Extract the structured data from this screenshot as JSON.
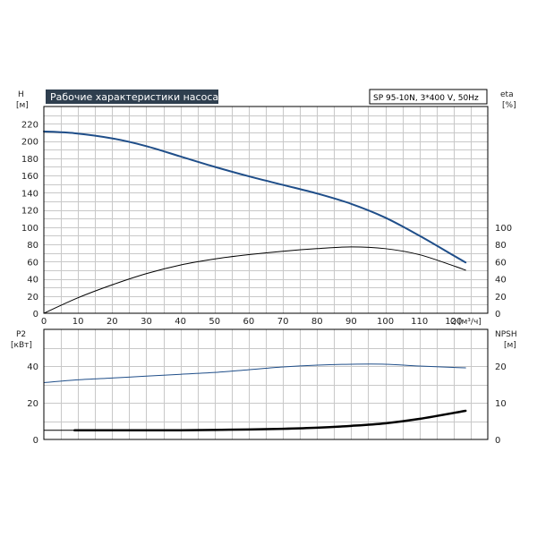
{
  "header": {
    "title": "Рабочие характеристики насоса",
    "model": "SP 95-10N, 3*400 V, 50Hz"
  },
  "colors": {
    "title_bg": "#2f3f4f",
    "blue": "#1f4e89",
    "black": "#000000",
    "grid": "#c8c8c8"
  },
  "chart_data": [
    {
      "type": "line",
      "name": "top",
      "x_label": "Q",
      "x_unit": "[м³/ч]",
      "xlim": [
        0,
        130
      ],
      "x_ticks": [
        0,
        10,
        20,
        30,
        40,
        50,
        60,
        70,
        80,
        90,
        100,
        110,
        120
      ],
      "left_axis": {
        "label": "H",
        "unit": "[м]",
        "ylim": [
          0,
          240
        ],
        "ticks": [
          0,
          20,
          40,
          60,
          80,
          100,
          120,
          140,
          160,
          180,
          200,
          220
        ]
      },
      "right_axis": {
        "label": "eta",
        "unit": "[%]",
        "ylim": [
          0,
          240
        ],
        "ticks": [
          0,
          20,
          40,
          60,
          80,
          100
        ]
      },
      "series": [
        {
          "axis": "left",
          "color": "blue",
          "width": 2,
          "x": [
            0,
            9,
            20,
            30,
            40,
            50,
            60,
            70,
            80,
            90,
            100,
            110,
            120,
            123.5
          ],
          "y": [
            211,
            209,
            203,
            194,
            182,
            170,
            159,
            149,
            139,
            127,
            111,
            90,
            67,
            59
          ]
        },
        {
          "axis": "right",
          "color": "black",
          "width": 1,
          "x": [
            0,
            10,
            20,
            30,
            40,
            50,
            60,
            70,
            80,
            90,
            100,
            110,
            120,
            123.5
          ],
          "y": [
            0,
            18,
            33,
            46,
            56,
            63,
            68,
            72,
            75,
            77,
            75,
            68,
            55,
            50
          ]
        }
      ]
    },
    {
      "type": "line",
      "name": "bottom",
      "xlim": [
        0,
        130
      ],
      "x_ticks": [
        0,
        10,
        20,
        30,
        40,
        50,
        60,
        70,
        80,
        90,
        100,
        110,
        120
      ],
      "left_axis": {
        "label": "P2",
        "unit": "[кВт]",
        "ylim": [
          0,
          60
        ],
        "ticks": [
          0,
          20,
          40
        ]
      },
      "right_axis": {
        "label": "NPSH",
        "unit": "[м]",
        "ylim": [
          0,
          30
        ],
        "ticks": [
          0,
          10,
          20
        ]
      },
      "series": [
        {
          "axis": "left",
          "color": "blue",
          "width": 1,
          "x": [
            0,
            10,
            20,
            30,
            40,
            50,
            60,
            70,
            80,
            90,
            100,
            110,
            123.5
          ],
          "y": [
            31,
            32.5,
            33.5,
            34.5,
            35.5,
            36.5,
            38,
            39.5,
            40.5,
            41,
            41,
            40,
            39
          ]
        },
        {
          "axis": "right",
          "color": "black",
          "width": 2.5,
          "x": [
            9,
            20,
            30,
            40,
            50,
            60,
            70,
            80,
            90,
            100,
            110,
            123.5
          ],
          "y": [
            2.5,
            2.5,
            2.5,
            2.5,
            2.6,
            2.7,
            2.9,
            3.2,
            3.7,
            4.4,
            5.6,
            7.8
          ]
        },
        {
          "axis": "right",
          "color": "black",
          "width": 1,
          "x": [
            0,
            9
          ],
          "y": [
            2.5,
            2.5
          ]
        }
      ]
    }
  ]
}
